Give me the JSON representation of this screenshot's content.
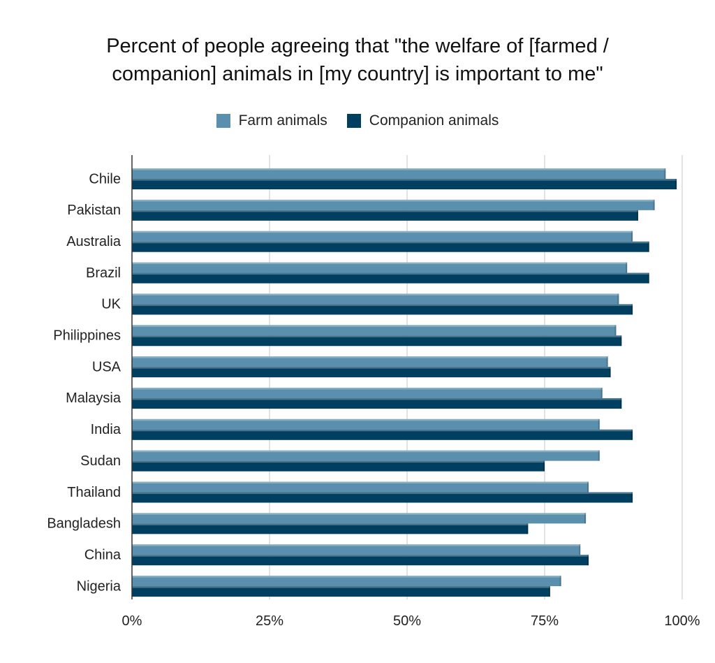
{
  "chart_data": {
    "type": "bar",
    "orientation": "horizontal",
    "title_lines": [
      "Percent of people agreeing that \"the welfare of [farmed /",
      "companion] animals in [my country] is important to me\""
    ],
    "categories": [
      "Chile",
      "Pakistan",
      "Australia",
      "Brazil",
      "UK",
      "Philippines",
      "USA",
      "Malaysia",
      "India",
      "Sudan",
      "Thailand",
      "Bangladesh",
      "China",
      "Nigeria"
    ],
    "series": [
      {
        "name": "Farm animals",
        "color": "#5a8fad",
        "values": [
          97,
          95,
          91,
          90,
          88.5,
          88,
          86.5,
          85.5,
          85,
          85,
          83,
          82.5,
          81.5,
          78
        ]
      },
      {
        "name": "Companion animals",
        "color": "#003f5f",
        "values": [
          99,
          92,
          94,
          94,
          91,
          89,
          87,
          89,
          91,
          75,
          91,
          72,
          83,
          76
        ]
      }
    ],
    "xlim": [
      0,
      100
    ],
    "x_ticks": [
      "0%",
      "25%",
      "50%",
      "75%",
      "100%"
    ],
    "x_tick_values": [
      0,
      25,
      50,
      75,
      100
    ],
    "grid": true,
    "legend_position": "top-center"
  }
}
